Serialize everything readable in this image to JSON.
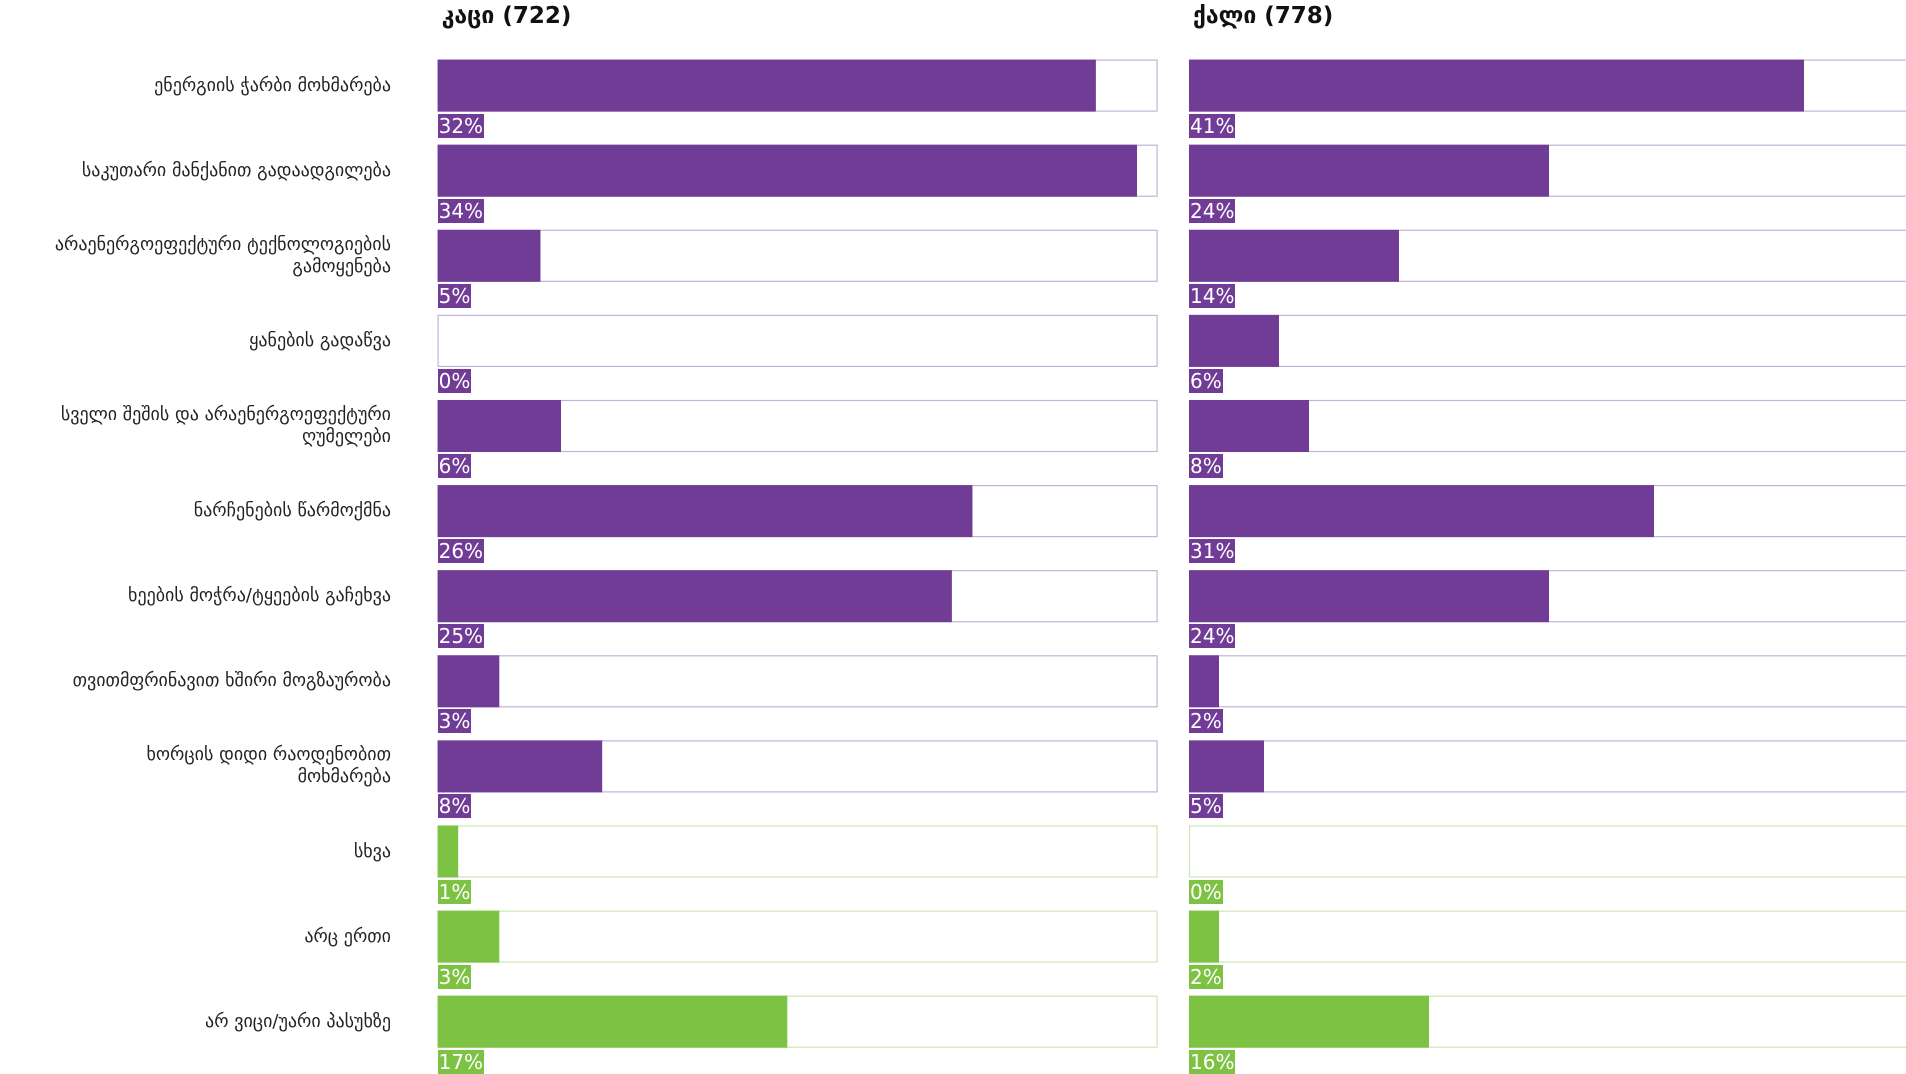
{
  "chart_data": {
    "type": "bar",
    "orientation": "horizontal",
    "categories": [
      "ენერგიის ჭარბი მოხმარება",
      "საკუთარი მანქანით გადაადგილება",
      "არაენერგოეფექტური ტექნოლოგიების\nგამოყენება",
      "ყანების გადაწვა",
      "სველი შეშის და არაენერგოეფექტური\nღუმელები",
      "ნარჩენების წარმოქმნა",
      "ხეების მოჭრა/ტყეების გაჩეხვა",
      "თვითმფრინავით ხშირი მოგზაურობა",
      "ხორცის დიდი რაოდენობით\nმოხმარება",
      "სხვა",
      "არც ერთი",
      "არ ვიცი/უარი პასუხზე"
    ],
    "colors": [
      "#703c95",
      "#703c95",
      "#703c95",
      "#703c95",
      "#703c95",
      "#703c95",
      "#703c95",
      "#703c95",
      "#703c95",
      "#7dc242",
      "#7dc242",
      "#7dc242"
    ],
    "series": [
      {
        "name": "კაცი (722)",
        "xlim": [
          0,
          35
        ],
        "values": [
          32,
          34,
          5,
          0,
          6,
          26,
          25,
          3,
          8,
          1,
          3,
          17
        ],
        "value_labels": [
          "32%",
          "34%",
          "5%",
          "0%",
          "6%",
          "26%",
          "25%",
          "3%",
          "8%",
          "1%",
          "3%",
          "17%"
        ]
      },
      {
        "name": "ქალი (778)",
        "xlim": [
          0,
          48
        ],
        "values": [
          41,
          24,
          14,
          6,
          8,
          31,
          24,
          2,
          5,
          0,
          2,
          16
        ],
        "value_labels": [
          "41%",
          "24%",
          "14%",
          "6%",
          "8%",
          "31%",
          "24%",
          "2%",
          "5%",
          "0%",
          "2%",
          "16%"
        ]
      }
    ]
  }
}
